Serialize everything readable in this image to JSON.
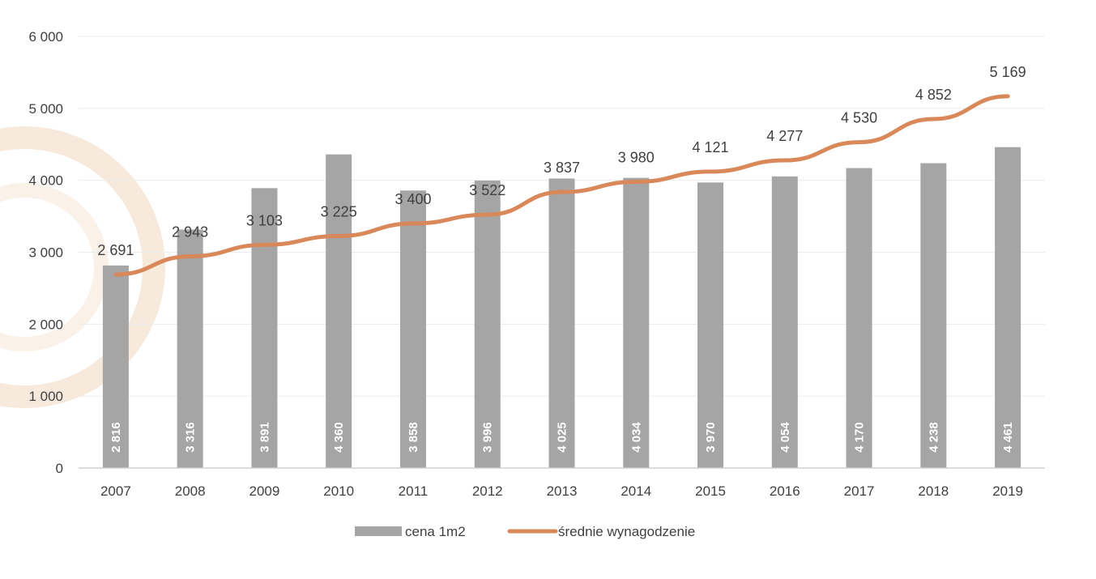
{
  "chart_data": {
    "type": "bar",
    "categories": [
      "2007",
      "2008",
      "2009",
      "2010",
      "2011",
      "2012",
      "2013",
      "2014",
      "2015",
      "2016",
      "2017",
      "2018",
      "2019"
    ],
    "ylim": [
      0,
      6000
    ],
    "y_ticks": [
      "0",
      "1 000",
      "2 000",
      "3 000",
      "4 000",
      "5 000",
      "6 000"
    ],
    "y_tick_values": [
      0,
      1000,
      2000,
      3000,
      4000,
      5000,
      6000
    ],
    "grid": true,
    "legend_position": "bottom",
    "series": [
      {
        "name": "cena 1m2",
        "kind": "bar",
        "color": "#a5a5a5",
        "values": [
          2816,
          3316,
          3891,
          4360,
          3858,
          3996,
          4025,
          4034,
          3970,
          4054,
          4170,
          4238,
          4461
        ],
        "labels": [
          "2 816",
          "3 316",
          "3 891",
          "4 360",
          "3 858",
          "3 996",
          "4 025",
          "4 034",
          "3 970",
          "4 054",
          "4 170",
          "4 238",
          "4 461"
        ]
      },
      {
        "name": "średnie wynagodzenie",
        "kind": "line",
        "color": "#d9885a",
        "values": [
          2691,
          2943,
          3103,
          3225,
          3400,
          3522,
          3837,
          3980,
          4121,
          4277,
          4530,
          4852,
          5169
        ],
        "labels": [
          "2 691",
          "2 943",
          "3 103",
          "3 225",
          "3 400",
          "3 522",
          "3 837",
          "3 980",
          "4 121",
          "4 277",
          "4 530",
          "4 852",
          "5 169"
        ]
      }
    ]
  }
}
